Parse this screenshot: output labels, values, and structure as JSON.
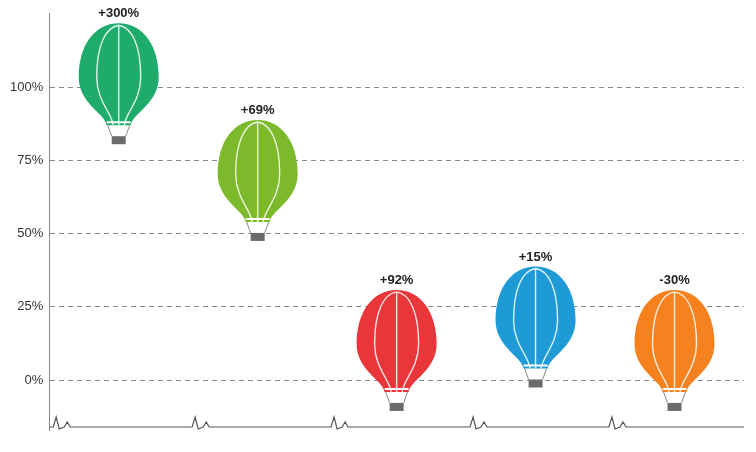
{
  "chart_data": {
    "type": "line",
    "categories": [
      null,
      null,
      null,
      null,
      null
    ],
    "values": [
      102,
      69,
      11,
      19,
      11
    ],
    "annotations": [
      "+300%",
      "+69%",
      "+92%",
      "+15%",
      "-30%"
    ],
    "colors": [
      "#1fab6b",
      "#7cba2b",
      "#e8363b",
      "#1e9ad7",
      "#f5821f"
    ],
    "marker": "balloon",
    "line_style": "none",
    "ylim": [
      -17,
      125
    ],
    "yticks": [
      {
        "value": 0,
        "label": "0%"
      },
      {
        "value": 25,
        "label": "25%"
      },
      {
        "value": 50,
        "label": "50%"
      },
      {
        "value": 75,
        "label": "75%"
      },
      {
        "value": 100,
        "label": "100%"
      }
    ],
    "grid": true,
    "tick_labels": "y"
  }
}
